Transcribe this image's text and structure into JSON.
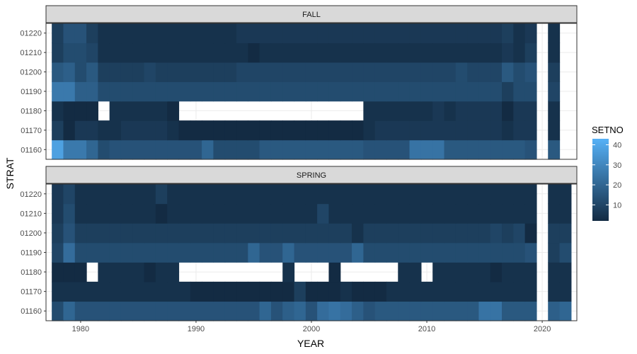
{
  "chart_data": {
    "type": "heatmap",
    "xlabel": "YEAR",
    "ylabel": "STRAT",
    "xlim": [
      1977,
      2023
    ],
    "x_ticks": [
      1980,
      1990,
      2000,
      2010,
      2020
    ],
    "y_categories": [
      "01160",
      "01170",
      "01180",
      "01190",
      "01200",
      "01210",
      "01220"
    ],
    "legend": {
      "title": "SETNO",
      "ticks": [
        10,
        20,
        30,
        40
      ],
      "range": [
        2,
        43
      ],
      "colors": {
        "low": "#132b43",
        "high": "#56b1f7"
      },
      "placement": "right"
    },
    "years_fall": [
      1978,
      1979,
      1980,
      1981,
      1982,
      1983,
      1984,
      1985,
      1986,
      1987,
      1988,
      1989,
      1990,
      1991,
      1992,
      1993,
      1994,
      1995,
      1996,
      1997,
      1998,
      1999,
      2000,
      2001,
      2002,
      2003,
      2004,
      2005,
      2006,
      2007,
      2008,
      2009,
      2010,
      2011,
      2012,
      2013,
      2014,
      2015,
      2016,
      2017,
      2018,
      2019,
      2021
    ],
    "years_spring": [
      1978,
      1979,
      1980,
      1981,
      1982,
      1983,
      1984,
      1985,
      1986,
      1987,
      1988,
      1989,
      1990,
      1991,
      1992,
      1993,
      1994,
      1995,
      1996,
      1997,
      1998,
      1999,
      2000,
      2001,
      2002,
      2003,
      2004,
      2005,
      2006,
      2007,
      2008,
      2009,
      2010,
      2011,
      2012,
      2013,
      2014,
      2015,
      2016,
      2017,
      2018,
      2019,
      2021,
      2022
    ],
    "panels": [
      {
        "season": "FALL",
        "values": {
          "01220": [
            8,
            14,
            14,
            8,
            4,
            4,
            4,
            4,
            4,
            4,
            4,
            4,
            4,
            4,
            4,
            4,
            6,
            6,
            6,
            6,
            6,
            6,
            6,
            6,
            6,
            6,
            6,
            6,
            6,
            6,
            6,
            6,
            6,
            6,
            6,
            6,
            6,
            6,
            6,
            8,
            4,
            6,
            4
          ],
          "01210": [
            8,
            12,
            12,
            10,
            4,
            4,
            4,
            4,
            4,
            4,
            4,
            4,
            4,
            4,
            4,
            4,
            4,
            2,
            4,
            4,
            4,
            4,
            4,
            4,
            4,
            4,
            4,
            4,
            4,
            4,
            4,
            4,
            4,
            4,
            4,
            4,
            4,
            4,
            4,
            6,
            4,
            8,
            4
          ],
          "01200": [
            16,
            18,
            12,
            16,
            8,
            8,
            8,
            8,
            10,
            8,
            8,
            8,
            8,
            8,
            8,
            8,
            10,
            10,
            10,
            10,
            10,
            10,
            10,
            10,
            10,
            10,
            10,
            10,
            10,
            10,
            10,
            10,
            10,
            10,
            10,
            12,
            10,
            10,
            10,
            16,
            12,
            14,
            8
          ],
          "01190": [
            26,
            26,
            18,
            18,
            12,
            12,
            12,
            12,
            12,
            12,
            12,
            12,
            12,
            12,
            12,
            12,
            12,
            12,
            12,
            12,
            12,
            12,
            12,
            12,
            12,
            12,
            12,
            12,
            12,
            12,
            12,
            12,
            12,
            12,
            12,
            12,
            12,
            12,
            12,
            8,
            12,
            12,
            10
          ],
          "01180": [
            4,
            2,
            2,
            2,
            null,
            4,
            4,
            4,
            4,
            4,
            2,
            null,
            null,
            null,
            null,
            null,
            null,
            null,
            null,
            null,
            null,
            null,
            null,
            null,
            null,
            null,
            null,
            4,
            4,
            4,
            4,
            4,
            4,
            6,
            4,
            6,
            6,
            6,
            6,
            2,
            6,
            6,
            4
          ],
          "01170": [
            8,
            2,
            6,
            6,
            4,
            4,
            6,
            6,
            6,
            6,
            4,
            2,
            2,
            2,
            2,
            2,
            2,
            2,
            2,
            2,
            2,
            2,
            2,
            2,
            2,
            2,
            2,
            4,
            6,
            6,
            6,
            6,
            6,
            6,
            6,
            6,
            6,
            6,
            6,
            4,
            6,
            6,
            4
          ],
          "01160": [
            38,
            26,
            26,
            20,
            12,
            14,
            14,
            14,
            14,
            14,
            14,
            14,
            14,
            20,
            12,
            12,
            12,
            12,
            16,
            16,
            16,
            16,
            16,
            16,
            16,
            16,
            16,
            14,
            14,
            14,
            14,
            24,
            24,
            24,
            16,
            16,
            16,
            16,
            16,
            16,
            16,
            14,
            16
          ]
        }
      },
      {
        "season": "SPRING",
        "values": {
          "01220": [
            6,
            10,
            4,
            4,
            4,
            4,
            4,
            4,
            4,
            8,
            4,
            4,
            4,
            4,
            4,
            4,
            4,
            4,
            4,
            4,
            4,
            4,
            4,
            4,
            4,
            4,
            4,
            4,
            4,
            4,
            4,
            4,
            4,
            4,
            4,
            4,
            4,
            4,
            4,
            4,
            4,
            4,
            4,
            4
          ],
          "01210": [
            6,
            12,
            4,
            4,
            4,
            4,
            4,
            4,
            4,
            2,
            4,
            4,
            4,
            4,
            4,
            4,
            4,
            4,
            4,
            4,
            4,
            4,
            4,
            10,
            4,
            4,
            4,
            4,
            4,
            4,
            4,
            4,
            4,
            4,
            4,
            4,
            4,
            4,
            4,
            4,
            4,
            4,
            4,
            4
          ],
          "01200": [
            8,
            14,
            8,
            8,
            8,
            8,
            8,
            8,
            8,
            8,
            8,
            8,
            8,
            8,
            8,
            8,
            8,
            8,
            8,
            8,
            8,
            8,
            8,
            8,
            8,
            8,
            4,
            8,
            8,
            8,
            8,
            8,
            8,
            8,
            8,
            8,
            8,
            8,
            10,
            8,
            10,
            2,
            8,
            8
          ],
          "01190": [
            10,
            22,
            12,
            12,
            12,
            12,
            12,
            12,
            12,
            12,
            12,
            12,
            12,
            12,
            12,
            12,
            12,
            20,
            14,
            14,
            20,
            14,
            14,
            14,
            14,
            14,
            20,
            12,
            12,
            12,
            12,
            12,
            12,
            12,
            12,
            12,
            12,
            12,
            12,
            12,
            12,
            14,
            8,
            12
          ],
          "01180": [
            2,
            2,
            2,
            null,
            4,
            4,
            4,
            4,
            2,
            4,
            4,
            null,
            null,
            null,
            null,
            null,
            null,
            null,
            null,
            null,
            4,
            null,
            null,
            null,
            2,
            null,
            null,
            null,
            null,
            null,
            4,
            4,
            null,
            4,
            4,
            4,
            4,
            4,
            2,
            4,
            4,
            4,
            4,
            4
          ],
          "01170": [
            4,
            4,
            4,
            4,
            4,
            4,
            4,
            4,
            4,
            4,
            4,
            4,
            2,
            2,
            2,
            2,
            2,
            2,
            2,
            2,
            2,
            8,
            2,
            2,
            2,
            4,
            2,
            2,
            2,
            4,
            4,
            4,
            4,
            4,
            4,
            4,
            4,
            4,
            4,
            4,
            4,
            4,
            4,
            4
          ],
          "01160": [
            12,
            20,
            14,
            14,
            14,
            14,
            14,
            14,
            14,
            14,
            14,
            14,
            14,
            14,
            14,
            14,
            14,
            14,
            20,
            14,
            18,
            20,
            14,
            22,
            24,
            22,
            18,
            14,
            16,
            16,
            16,
            16,
            16,
            16,
            16,
            16,
            16,
            24,
            24,
            16,
            16,
            16,
            18,
            20
          ]
        }
      }
    ]
  }
}
